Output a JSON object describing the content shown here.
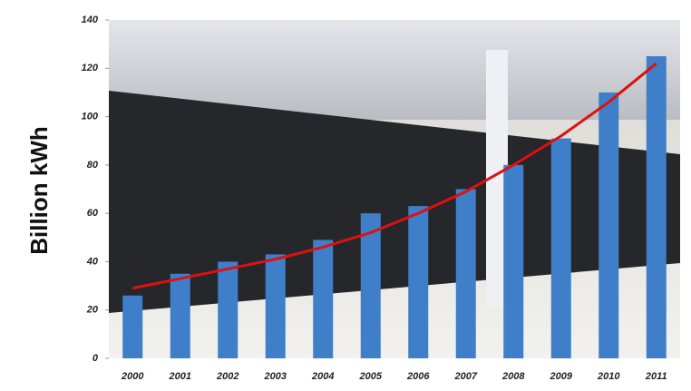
{
  "chart_data": {
    "type": "bar",
    "y_label": "Billion kWh",
    "categories": [
      "2000",
      "2001",
      "2002",
      "2003",
      "2004",
      "2005",
      "2006",
      "2007",
      "2008",
      "2009",
      "2010",
      "2011"
    ],
    "values": [
      26,
      35,
      40,
      43,
      49,
      60,
      63,
      70,
      80,
      91,
      110,
      125
    ],
    "color": "#3f7fc9",
    "trend": {
      "color": "#e01010",
      "values": [
        29,
        33,
        37,
        41,
        46,
        52,
        60,
        69,
        80,
        92,
        106,
        122
      ]
    },
    "ylim": [
      0,
      140
    ],
    "yticks": [
      0,
      20,
      40,
      60,
      80,
      100,
      120,
      140
    ]
  }
}
